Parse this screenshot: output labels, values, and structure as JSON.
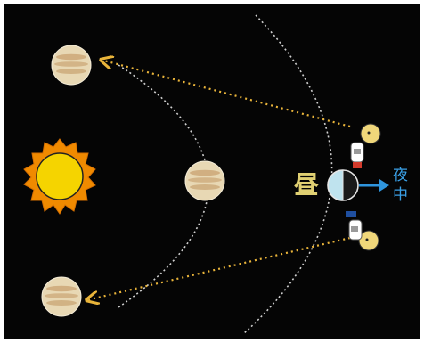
{
  "labels": {
    "day": "昼",
    "night_line1": "夜",
    "night_line2": "中"
  },
  "colors": {
    "background": "#050505",
    "sun": "#f5d400",
    "sun_rays": "#f08a00",
    "venus": "#e8d8b4",
    "venus_band": "#caa574",
    "orbit": "#cfcfcf",
    "sight_line": "#e9b43a",
    "night_arrow": "#2f95dd",
    "earth_day": "#bfe3ee",
    "earth_night": "#1a1a1a"
  },
  "icons": [
    "sun-icon",
    "venus-planet-icon",
    "earth-icon",
    "observer-figure-icon",
    "night-direction-arrow-icon"
  ]
}
